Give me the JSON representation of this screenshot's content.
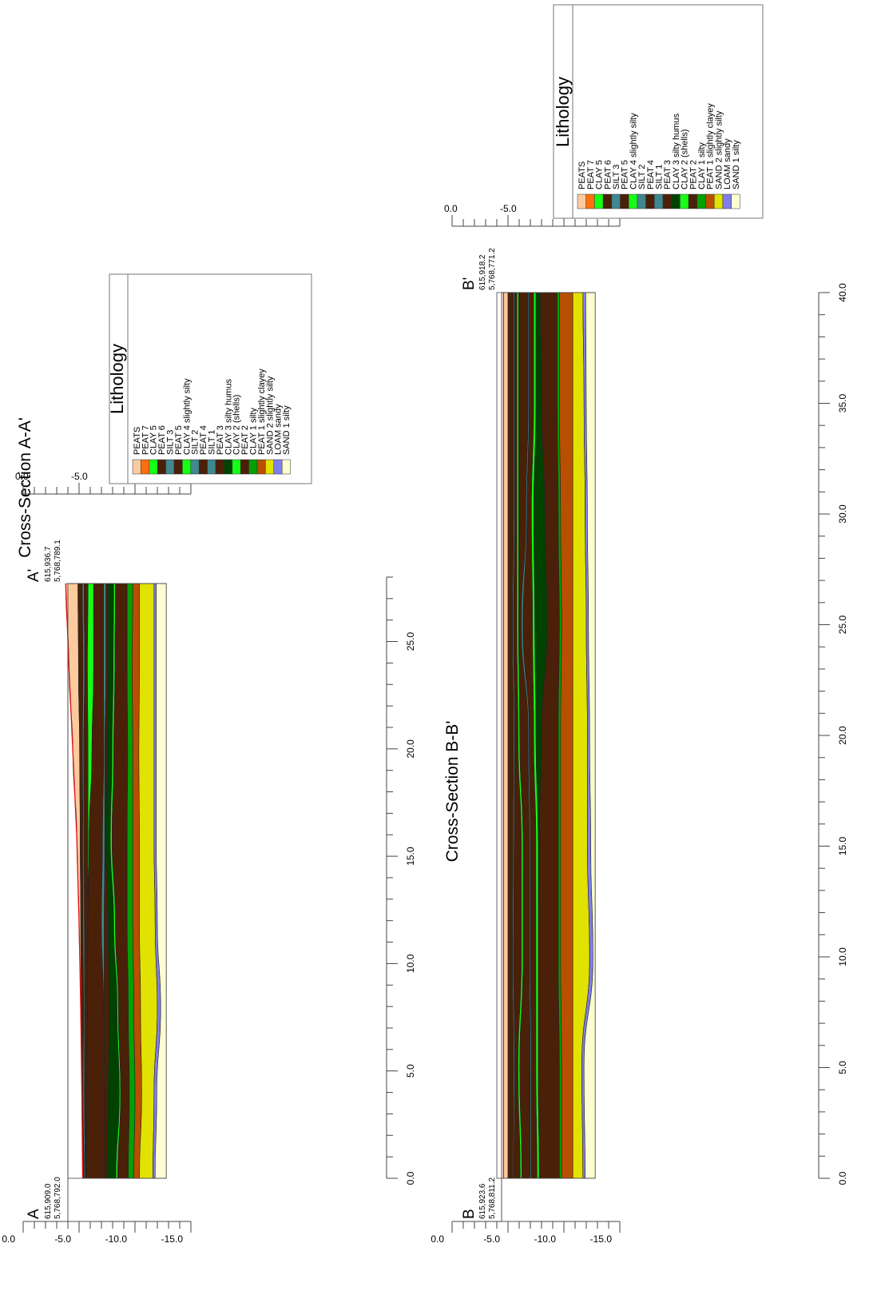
{
  "colors": {
    "PEATS": "#fbcb9f",
    "PEAT 7": "#ff6f0d",
    "CLAY 5": "#17ff17",
    "PEAT 6": "#4b2008",
    "SILT 3": "#40878f",
    "PEAT 5": "#4b2008",
    "CLAY 4 slightly silty": "#17ff17",
    "SILT 2": "#40878f",
    "PEAT 4": "#4b2008",
    "SILT 1": "#40878f",
    "PEAT 3": "#4b2008",
    "CLAY 3 silty humus": "#004200",
    "CLAY 2 (shells)": "#17ff17",
    "PEAT 2": "#4b2008",
    "CLAY 1 silty": "#04a004",
    "PEAT 1 slightly clayey": "#b85000",
    "SAND 2 slightly silty": "#e2e202",
    "LOAM sandy": "#7f7feb",
    "SAND 1 silty": "#fdfdd2",
    "surface_line": "#dd1111"
  },
  "legend": {
    "title": "Lithology",
    "items": [
      "PEATS",
      "PEAT 7",
      "CLAY 5",
      "PEAT 6",
      "SILT 3",
      "PEAT 5",
      "CLAY 4 slightly silty",
      "SILT 2",
      "PEAT 4",
      "SILT 1",
      "PEAT 3",
      "CLAY 3 silty humus",
      "CLAY 2 (shells)",
      "PEAT 2",
      "CLAY 1 silty",
      "PEAT 1 slightly clayey",
      "SAND 2 slightly silty",
      "LOAM sandy",
      "SAND 1 silty"
    ]
  },
  "sections": [
    {
      "id": "AA",
      "title": "Cross-Section A-A'",
      "start": {
        "label": "A",
        "easting": "615,909.0",
        "northing": "5,768,792.0"
      },
      "end": {
        "label": "A'",
        "easting": "615,936.7",
        "northing": "5,768,789.1"
      },
      "distance_ticks": [
        "0.0",
        "5.0",
        "10.0",
        "15.0",
        "20.0",
        "25.0"
      ],
      "depth_ticks": [
        "0.0",
        "-5.0",
        "-10.0",
        "-15.0"
      ],
      "length_m": 27.7,
      "layers": [
        {
          "name": "PEATS",
          "top": [
            -5.32,
            -5.25,
            -5.15,
            -5.0,
            -4.8,
            -4.45,
            -4.1,
            -3.8
          ],
          "bottom": [
            -5.35,
            -5.25,
            -5.2,
            -5.15,
            -5.1,
            -5.05,
            -4.95,
            -4.9
          ]
        },
        {
          "name": "PEAT 6",
          "top": [
            -5.35,
            -5.25,
            -5.2,
            -5.15,
            -5.1,
            -5.05,
            -4.95,
            -4.9
          ],
          "bottom": [
            -5.45,
            -5.35,
            -5.4,
            -5.35,
            -5.35,
            -5.3,
            -5.35,
            -5.3
          ]
        },
        {
          "name": "SILT 3",
          "top": [
            -5.45,
            -5.35,
            -5.4,
            -5.35,
            -5.35,
            -5.3,
            -5.35,
            -5.3
          ],
          "bottom": [
            -5.55,
            -5.48,
            -5.5,
            -5.48,
            -5.45,
            -5.42,
            -5.5,
            -5.45
          ]
        },
        {
          "name": "PEAT 5",
          "top": [
            -5.55,
            -5.48,
            -5.5,
            -5.48,
            -5.45,
            -5.42,
            -5.5,
            -5.45
          ],
          "bottom": [
            -5.65,
            -5.7,
            -5.75,
            -5.8,
            -5.8,
            -5.8,
            -5.75,
            -5.8
          ]
        },
        {
          "name": "CLAY 5",
          "top": [
            -5.65,
            -5.7,
            -5.75,
            -5.8,
            -5.8,
            -5.8,
            -5.75,
            -5.8
          ],
          "bottom": [
            -5.65,
            -5.7,
            -5.75,
            -5.8,
            -5.9,
            -6.15,
            -6.3,
            -6.3
          ]
        },
        {
          "name": "PEAT 4",
          "top": [
            -5.65,
            -5.7,
            -5.75,
            -5.8,
            -5.9,
            -6.15,
            -6.3,
            -6.3
          ],
          "bottom": [
            -7.3,
            -7.3,
            -7.2,
            -7.0,
            -7.1,
            -7.2,
            -7.2,
            -7.2
          ]
        },
        {
          "name": "SILT 2",
          "top": [
            -7.3,
            -7.3,
            -7.2,
            -7.0,
            -7.1,
            -7.2,
            -7.2,
            -7.2
          ],
          "bottom": [
            -7.35,
            -7.35,
            -7.25,
            -7.25,
            -7.3,
            -7.3,
            -7.4,
            -7.4
          ]
        },
        {
          "name": "PEAT 3",
          "top": [
            -7.35,
            -7.35,
            -7.25,
            -7.25,
            -7.3,
            -7.3,
            -7.4,
            -7.4
          ],
          "bottom": [
            -7.5,
            -7.6,
            -7.7,
            -7.6,
            -7.4,
            -7.5,
            -7.6,
            -7.6
          ]
        },
        {
          "name": "CLAY 3 silty humus",
          "top": [
            -7.5,
            -7.6,
            -7.7,
            -7.6,
            -7.4,
            -7.5,
            -7.6,
            -7.6
          ],
          "bottom": [
            -8.3,
            -8.6,
            -8.4,
            -8.1,
            -7.8,
            -7.95,
            -8.05,
            -8.1
          ]
        },
        {
          "name": "CLAY 2 (shells)",
          "top": [
            -8.3,
            -8.6,
            -8.4,
            -8.1,
            -7.8,
            -7.95,
            -8.05,
            -8.1
          ],
          "bottom": [
            -8.45,
            -8.72,
            -8.52,
            -8.25,
            -7.95,
            -8.1,
            -8.2,
            -8.25
          ]
        },
        {
          "name": "PEAT 2",
          "top": [
            -8.45,
            -8.72,
            -8.52,
            -8.25,
            -7.95,
            -8.1,
            -8.2,
            -8.25
          ],
          "bottom": [
            -9.4,
            -9.5,
            -9.4,
            -9.3,
            -9.3,
            -9.35,
            -9.3,
            -9.3
          ]
        },
        {
          "name": "CLAY 1 silty",
          "top": [
            -9.4,
            -9.5,
            -9.4,
            -9.3,
            -9.3,
            -9.35,
            -9.3,
            -9.3
          ],
          "bottom": [
            -9.9,
            -10.0,
            -9.9,
            -9.8,
            -9.8,
            -9.8,
            -9.75,
            -9.8
          ]
        },
        {
          "name": "PEAT 1 slightly clayey",
          "top": [
            -9.9,
            -10.0,
            -9.9,
            -9.8,
            -9.8,
            -9.8,
            -9.75,
            -9.8
          ],
          "bottom": [
            -10.4,
            -10.6,
            -10.5,
            -10.4,
            -10.4,
            -10.35,
            -10.4,
            -10.4
          ]
        },
        {
          "name": "SAND 2 slightly silty",
          "top": [
            -10.4,
            -10.6,
            -10.5,
            -10.4,
            -10.4,
            -10.35,
            -10.4,
            -10.4
          ],
          "bottom": [
            -11.6,
            -11.7,
            -12.0,
            -11.8,
            -11.7,
            -11.7,
            -11.7,
            -11.7
          ]
        },
        {
          "name": "LOAM sandy",
          "top": [
            -11.6,
            -11.7,
            -12.0,
            -11.8,
            -11.7,
            -11.7,
            -11.7,
            -11.7
          ],
          "bottom": [
            -11.8,
            -11.95,
            -12.3,
            -12.0,
            -11.9,
            -11.9,
            -11.9,
            -11.9
          ]
        },
        {
          "name": "SAND 1 silty",
          "top": [
            -11.8,
            -11.95,
            -12.3,
            -12.0,
            -11.9,
            -11.9,
            -11.9,
            -11.9
          ],
          "bottom": [
            -12.8,
            -12.8,
            -12.8,
            -12.8,
            -12.8,
            -12.8,
            -12.8,
            -12.8
          ]
        }
      ]
    },
    {
      "id": "BB",
      "title": "Cross-Section B-B'",
      "start": {
        "label": "B",
        "easting": "615,923.6",
        "northing": "5,768,811.2"
      },
      "end": {
        "label": "B'",
        "easting": "615,918.2",
        "northing": "5,768,771.2"
      },
      "distance_ticks": [
        "0.0",
        "5.0",
        "10.0",
        "15.0",
        "20.0",
        "25.0",
        "30.0",
        "35.0",
        "40.0"
      ],
      "depth_ticks": [
        "0.0",
        "-5.0",
        "-10.0",
        "-15.0"
      ],
      "length_m": 40.0,
      "layers": [
        {
          "name": "PEATS",
          "top": [
            -4.6,
            -4.6,
            -4.6,
            -4.6,
            -4.6,
            -4.6,
            -4.6,
            -4.6,
            -4.6
          ],
          "bottom": [
            -5.0,
            -5.0,
            -5.0,
            -5.0,
            -5.0,
            -5.0,
            -5.0,
            -5.0,
            -5.0
          ]
        },
        {
          "name": "PEAT 7",
          "top": [
            -5.0,
            -5.0,
            -5.0,
            -5.0,
            -5.0,
            -5.0,
            -5.0,
            -5.0,
            -5.0
          ],
          "bottom": [
            -5.05,
            -5.05,
            -5.05,
            -5.05,
            -5.05,
            -5.05,
            -5.05,
            -5.05,
            -5.05
          ]
        },
        {
          "name": "PEAT 6",
          "top": [
            -5.05,
            -5.05,
            -5.05,
            -5.05,
            -5.05,
            -5.05,
            -5.05,
            -5.05,
            -5.05
          ],
          "bottom": [
            -5.45,
            -5.5,
            -5.4,
            -5.45,
            -5.5,
            -5.4,
            -5.5,
            -5.5,
            -5.5
          ]
        },
        {
          "name": "SILT 3",
          "top": [
            -5.45,
            -5.5,
            -5.4,
            -5.45,
            -5.5,
            -5.4,
            -5.5,
            -5.5,
            -5.5
          ],
          "bottom": [
            -5.52,
            -5.6,
            -5.5,
            -5.55,
            -5.6,
            -5.5,
            -5.6,
            -5.6,
            -5.6
          ]
        },
        {
          "name": "PEAT 5",
          "top": [
            -5.52,
            -5.6,
            -5.5,
            -5.55,
            -5.6,
            -5.5,
            -5.6,
            -5.6,
            -5.6
          ],
          "bottom": [
            -6.1,
            -5.9,
            -6.2,
            -6.2,
            -5.9,
            -5.8,
            -5.8,
            -5.8,
            -5.8
          ]
        },
        {
          "name": "CLAY 4 slightly silty",
          "top": [
            -6.1,
            -5.9,
            -6.2,
            -6.2,
            -5.9,
            -5.8,
            -5.8,
            -5.8,
            -5.8
          ],
          "bottom": [
            -6.25,
            -6.05,
            -6.35,
            -6.35,
            -6.05,
            -5.95,
            -5.95,
            -5.95,
            -5.95
          ]
        },
        {
          "name": "PEAT 4",
          "top": [
            -6.25,
            -6.05,
            -6.35,
            -6.35,
            -6.05,
            -5.95,
            -5.95,
            -5.95,
            -5.95
          ],
          "bottom": [
            -7.0,
            -7.0,
            -6.9,
            -6.9,
            -6.8,
            -6.2,
            -6.6,
            -6.8,
            -6.8
          ]
        },
        {
          "name": "SILT 1",
          "top": [
            -7.0,
            -7.0,
            -6.9,
            -6.9,
            -6.8,
            -6.2,
            -6.6,
            -6.8,
            -6.8
          ],
          "bottom": [
            -7.1,
            -7.1,
            -7.0,
            -7.0,
            -6.9,
            -6.35,
            -6.7,
            -6.9,
            -6.9
          ]
        },
        {
          "name": "PEAT 3",
          "top": [
            -7.1,
            -7.1,
            -7.0,
            -7.0,
            -6.9,
            -6.35,
            -6.7,
            -6.9,
            -6.9
          ],
          "bottom": [
            -7.6,
            -7.5,
            -7.5,
            -7.5,
            -7.3,
            -7.2,
            -7.1,
            -7.3,
            -7.3
          ]
        },
        {
          "name": "CLAY 2 (shells)",
          "top": [
            -7.6,
            -7.5,
            -7.5,
            -7.5,
            -7.3,
            -7.2,
            -7.1,
            -7.3,
            -7.3
          ],
          "bottom": [
            -7.8,
            -7.7,
            -7.7,
            -7.7,
            -7.5,
            -7.4,
            -7.3,
            -7.5,
            -7.5
          ]
        },
        {
          "name": "CLAY 3 silty humus",
          "top": [
            -7.8,
            -7.7,
            -7.7,
            -7.7,
            -7.5,
            -7.4,
            -7.3,
            -7.5,
            -7.5
          ],
          "bottom": [
            -7.8,
            -7.7,
            -7.7,
            -7.8,
            -8.0,
            -8.5,
            -8.3,
            -8.0,
            -7.9
          ]
        },
        {
          "name": "PEAT 2",
          "top": [
            -7.8,
            -7.7,
            -7.7,
            -7.8,
            -8.0,
            -8.5,
            -8.3,
            -8.0,
            -7.9
          ],
          "bottom": [
            -9.6,
            -9.6,
            -9.5,
            -9.5,
            -9.5,
            -9.6,
            -9.5,
            -9.4,
            -9.4
          ]
        },
        {
          "name": "CLAY 1 silty",
          "top": [
            -9.6,
            -9.6,
            -9.5,
            -9.5,
            -9.5,
            -9.6,
            -9.5,
            -9.4,
            -9.4
          ],
          "bottom": [
            -9.8,
            -9.8,
            -9.7,
            -9.7,
            -9.7,
            -9.8,
            -9.7,
            -9.6,
            -9.6
          ]
        },
        {
          "name": "PEAT 1 slightly clayey",
          "top": [
            -9.8,
            -9.8,
            -9.7,
            -9.7,
            -9.7,
            -9.8,
            -9.7,
            -9.6,
            -9.6
          ],
          "bottom": [
            -10.8,
            -10.8,
            -10.8,
            -10.8,
            -10.8,
            -10.8,
            -10.8,
            -10.8,
            -10.8
          ]
        },
        {
          "name": "SAND 2 slightly silty",
          "top": [
            -10.8,
            -10.8,
            -10.8,
            -10.8,
            -10.8,
            -10.8,
            -10.8,
            -10.8,
            -10.8
          ],
          "bottom": [
            -11.7,
            -11.6,
            -12.3,
            -12.1,
            -12.1,
            -12.0,
            -11.9,
            -11.8,
            -11.7
          ]
        },
        {
          "name": "LOAM sandy",
          "top": [
            -11.7,
            -11.6,
            -12.3,
            -12.1,
            -12.1,
            -12.0,
            -11.9,
            -11.8,
            -11.7
          ],
          "bottom": [
            -11.9,
            -11.8,
            -12.6,
            -12.4,
            -12.3,
            -12.2,
            -12.1,
            -12.0,
            -11.95
          ]
        },
        {
          "name": "SAND 1 silty",
          "top": [
            -11.9,
            -11.8,
            -12.6,
            -12.4,
            -12.3,
            -12.2,
            -12.1,
            -12.0,
            -11.95
          ],
          "bottom": [
            -12.8,
            -12.8,
            -12.8,
            -12.8,
            -12.8,
            -12.8,
            -12.8,
            -12.8,
            -12.8
          ]
        }
      ]
    }
  ]
}
